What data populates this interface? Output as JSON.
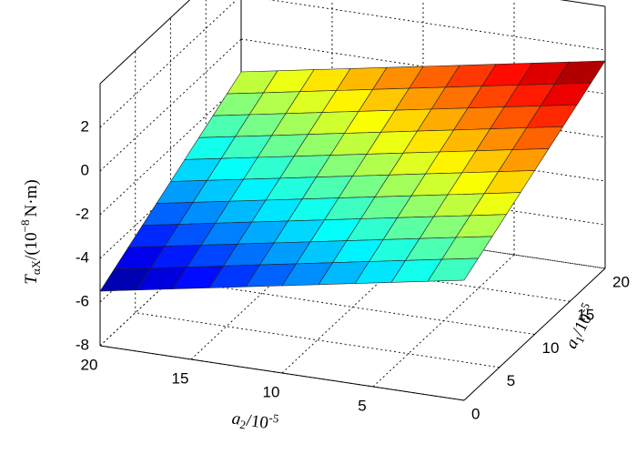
{
  "chart_data": {
    "type": "surface",
    "x": [
      0,
      2,
      4,
      6,
      8,
      10,
      12,
      14,
      16,
      18,
      20
    ],
    "y": [
      0,
      2,
      4,
      6,
      8,
      10,
      12,
      14,
      16,
      18,
      20
    ],
    "z": [
      [
        -2.5,
        -2.8,
        -3.1,
        -3.4,
        -3.7,
        -4,
        -4.3,
        -4.6,
        -4.9,
        -5.2,
        -5.5
      ],
      [
        -2.1,
        -2.4,
        -2.7,
        -3,
        -3.3,
        -3.6,
        -3.9,
        -4.2,
        -4.5,
        -4.8,
        -5.1
      ],
      [
        -1.7,
        -2,
        -2.3,
        -2.6,
        -2.9,
        -3.2,
        -3.5,
        -3.8,
        -4.1,
        -4.4,
        -4.7
      ],
      [
        -1.3,
        -1.6,
        -1.9,
        -2.2,
        -2.5,
        -2.8,
        -3.1,
        -3.4,
        -3.7,
        -4,
        -4.3
      ],
      [
        -0.9,
        -1.2,
        -1.5,
        -1.8,
        -2.1,
        -2.4,
        -2.7,
        -3,
        -3.3,
        -3.6,
        -3.9
      ],
      [
        -0.5,
        -0.8,
        -1.1,
        -1.4,
        -1.7,
        -2,
        -2.3,
        -2.6,
        -2.9,
        -3.2,
        -3.5
      ],
      [
        -0.1,
        -0.4,
        -0.7,
        -1,
        -1.3,
        -1.6,
        -1.9,
        -2.2,
        -2.5,
        -2.8,
        -3.1
      ],
      [
        0.3,
        0,
        -0.3,
        -0.6,
        -0.9,
        -1.2,
        -1.5,
        -1.8,
        -2.1,
        -2.4,
        -2.7
      ],
      [
        0.7,
        0.4,
        0.1,
        -0.2,
        -0.5,
        -0.8,
        -1.1,
        -1.4,
        -1.7,
        -2,
        -2.3
      ],
      [
        1.1,
        0.8,
        0.5,
        0.2,
        -0.1,
        -0.4,
        -0.7,
        -1,
        -1.3,
        -1.6,
        -1.9
      ],
      [
        1.5,
        1.2,
        0.9,
        0.6,
        0.3,
        0,
        -0.3,
        -0.6,
        -0.9,
        -1.2,
        -1.5
      ]
    ],
    "xlim": [
      0,
      20
    ],
    "ylim": [
      0,
      20
    ],
    "zlim": [
      -8,
      4
    ],
    "xticks": [
      5,
      10,
      15,
      20
    ],
    "yticks": [
      0,
      5,
      10,
      15,
      20
    ],
    "zticks": [
      -8,
      -6,
      -4,
      -2,
      0,
      2
    ],
    "xlabel": {
      "var": "a",
      "sub": "2",
      "unit": "/10",
      "sup": "-5"
    },
    "ylabel": {
      "var": "a",
      "sub": "1",
      "unit": "/10",
      "sup": "-5"
    },
    "zlabel": {
      "var": "T",
      "sub": "αX",
      "unit": "/(10",
      "sup": "−8",
      "rest": "N·m)"
    },
    "colormap": "jet",
    "grid": true
  }
}
